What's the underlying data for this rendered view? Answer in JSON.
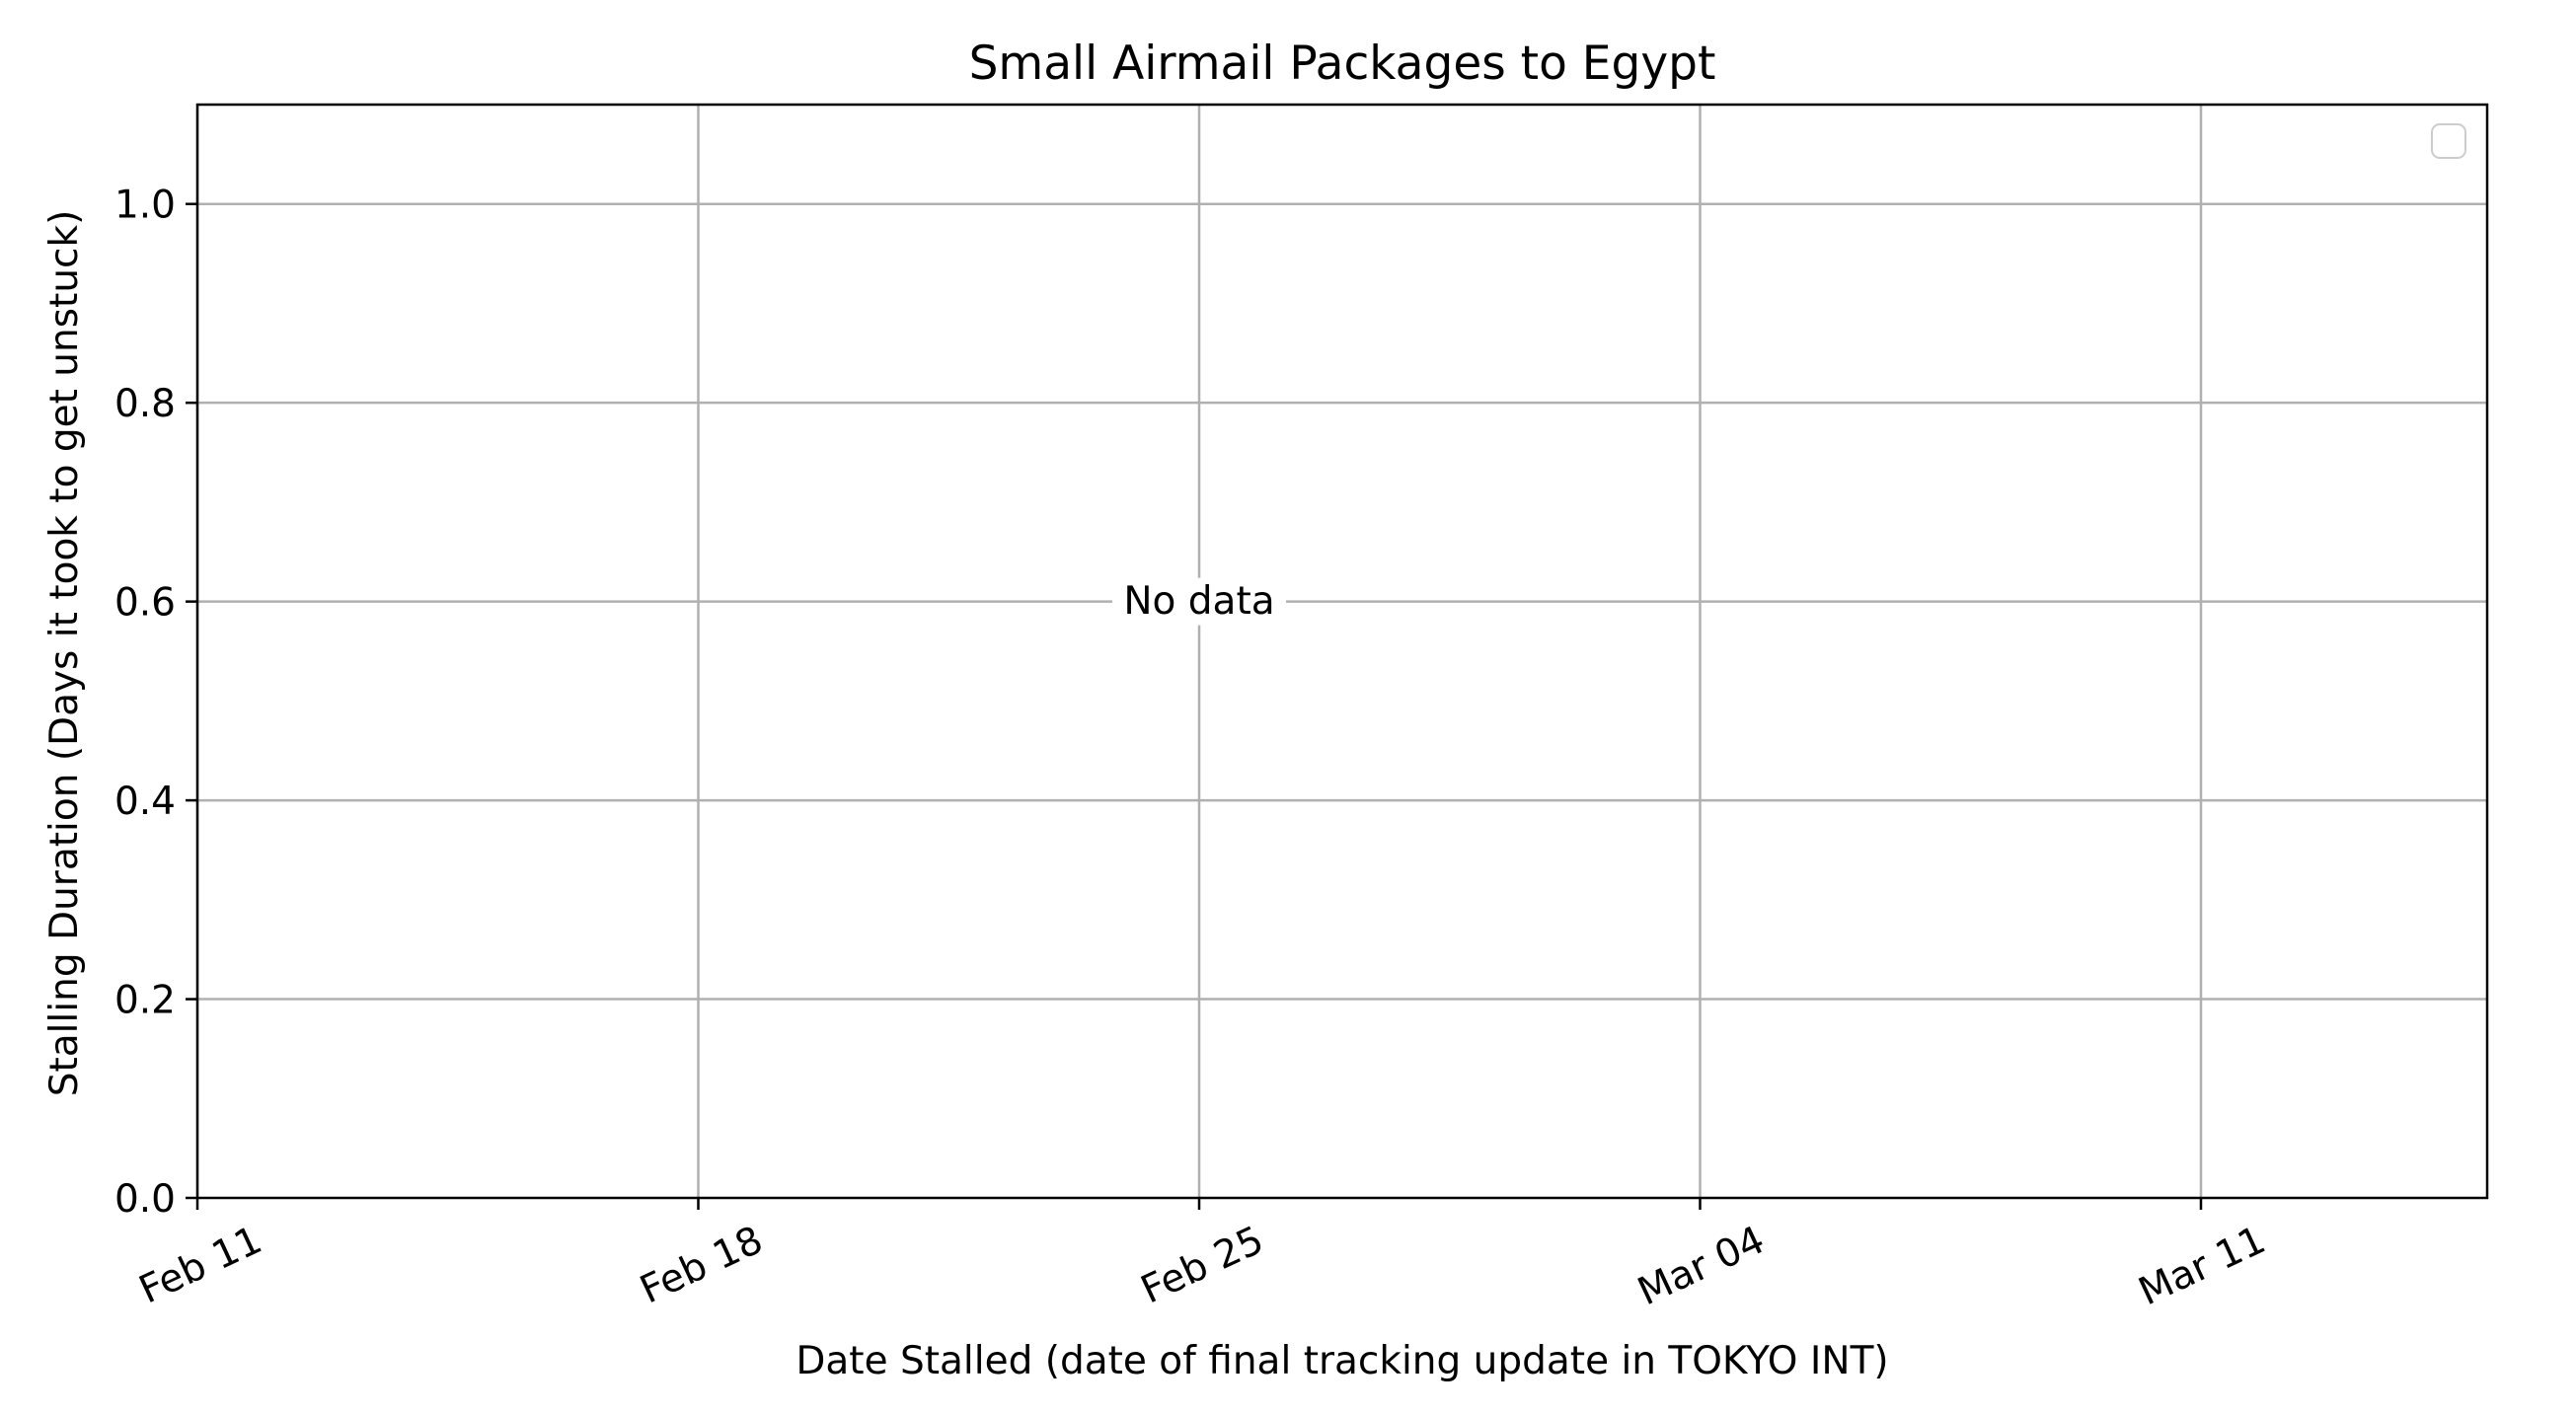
{
  "chart_data": {
    "type": "scatter",
    "title": "Small Airmail Packages to Egypt",
    "xlabel": "Date Stalled (date of final tracking update in TOKYO INT)",
    "ylabel": "Stalling Duration (Days it took to get unstuck)",
    "x_axis": {
      "kind": "date",
      "range": [
        "2025-02-11",
        "2025-03-15"
      ],
      "ticks": [
        {
          "value": "2025-02-11",
          "label": "Feb 11"
        },
        {
          "value": "2025-02-18",
          "label": "Feb 18"
        },
        {
          "value": "2025-02-25",
          "label": "Feb 25"
        },
        {
          "value": "2025-03-04",
          "label": "Mar 04"
        },
        {
          "value": "2025-03-11",
          "label": "Mar 11"
        }
      ]
    },
    "y_axis": {
      "range": [
        0,
        1.1
      ],
      "ticks": [
        {
          "value": 0.0,
          "label": "0.0"
        },
        {
          "value": 0.2,
          "label": "0.2"
        },
        {
          "value": 0.4,
          "label": "0.4"
        },
        {
          "value": 0.6,
          "label": "0.6"
        },
        {
          "value": 0.8,
          "label": "0.8"
        },
        {
          "value": 1.0,
          "label": "1.0"
        }
      ]
    },
    "series": [],
    "grid": true,
    "legend": {
      "position": "top-right",
      "entries": []
    },
    "annotation": {
      "text": "No data",
      "x": "2025-02-25",
      "y": 0.6
    },
    "colors": {
      "grid": "#b0b0b0",
      "axis": "#000000",
      "legend_border": "#cccccc"
    }
  }
}
